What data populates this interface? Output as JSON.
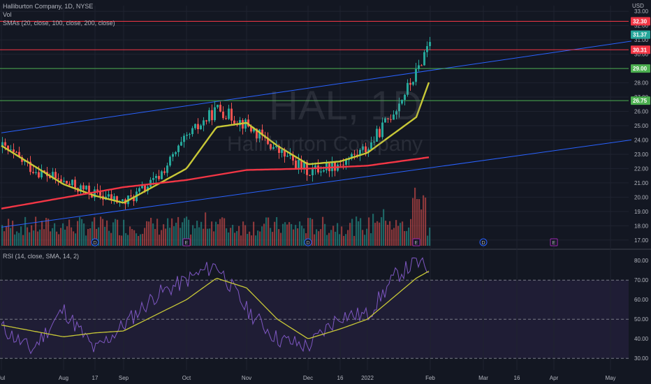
{
  "header": {
    "symbol_line": "Halliburton Company, 1D, NYSE",
    "vol_label": "Vol",
    "sma_label": "SMAs (20, close, 100, close, 200, close)",
    "rsi_label": "RSI (14, close, SMA, 14, 2)",
    "currency": "USD"
  },
  "watermark": {
    "ticker": "HAL, 1D",
    "name": "Halliburton Company"
  },
  "colors": {
    "background": "#131722",
    "grid": "#1f2330",
    "up": "#26a69a",
    "down": "#ef5350",
    "sma_fast": "#c8c837",
    "sma_slow": "#f23645",
    "channel": "#2962ff",
    "resistance": "#f23645",
    "support": "#4caf50",
    "rsi_line": "#7e57c2",
    "rsi_ma": "#c8c837",
    "rsi_band": "#2a2346"
  },
  "chart_data": [
    {
      "type": "candlestick",
      "title": "Halliburton Company, 1D, NYSE",
      "ylim": [
        16.6,
        33.4
      ],
      "y_ticks": [
        "17.00",
        "18.00",
        "19.00",
        "20.00",
        "21.00",
        "22.00",
        "23.00",
        "24.00",
        "25.00",
        "26.00",
        "27.00",
        "28.00",
        "29.00",
        "30.00",
        "31.00",
        "32.00",
        "33.00"
      ],
      "x_ticks": [
        "Jul",
        "Aug",
        "17",
        "Sep",
        "Oct",
        "Nov",
        "Dec",
        "16",
        "2022",
        "Feb",
        "Mar",
        "16",
        "Apr",
        "May"
      ],
      "horizontal_levels": [
        {
          "label": "32.30",
          "value": 32.3,
          "kind": "resistance"
        },
        {
          "label": "30.31",
          "value": 30.31,
          "kind": "resistance"
        },
        {
          "label": "29.00",
          "value": 29.0,
          "kind": "support"
        },
        {
          "label": "26.75",
          "value": 26.75,
          "kind": "support"
        }
      ],
      "last_price": {
        "label": "31.37",
        "value": 31.37
      },
      "channel_lines": [
        {
          "name": "upper",
          "from": [
            "Jul",
            24.5
          ],
          "to": [
            "May",
            30.7
          ]
        },
        {
          "name": "lower",
          "from": [
            "Jul",
            17.9
          ],
          "to": [
            "May",
            23.8
          ]
        }
      ],
      "close_series_approx": [
        {
          "date": "Jul",
          "close": 23.5
        },
        {
          "date": "Jul (mid)",
          "close": 22.0
        },
        {
          "date": "Aug",
          "close": 21.0
        },
        {
          "date": "Aug 17",
          "close": 20.2
        },
        {
          "date": "Sep",
          "close": 19.6
        },
        {
          "date": "Sep (mid)",
          "close": 21.2
        },
        {
          "date": "Oct",
          "close": 24.2
        },
        {
          "date": "Oct (mid)",
          "close": 26.2
        },
        {
          "date": "Nov",
          "close": 25.0
        },
        {
          "date": "Nov (mid)",
          "close": 23.2
        },
        {
          "date": "Dec",
          "close": 21.8
        },
        {
          "date": "Dec 16",
          "close": 22.4
        },
        {
          "date": "2022",
          "close": 23.5
        },
        {
          "date": "Jan (mid)",
          "close": 26.3
        },
        {
          "date": "Jan (late)",
          "close": 28.8
        },
        {
          "date": "Feb",
          "close": 31.37
        }
      ],
      "series": [
        {
          "name": "SMA 20",
          "values": [
            {
              "date": "Jul",
              "value": 23.6
            },
            {
              "date": "Aug",
              "value": 20.9
            },
            {
              "date": "Aug 17",
              "value": 20.1
            },
            {
              "date": "Sep",
              "value": 19.6
            },
            {
              "date": "Oct",
              "value": 22.0
            },
            {
              "date": "Oct (mid)",
              "value": 24.9
            },
            {
              "date": "Nov",
              "value": 25.2
            },
            {
              "date": "Nov (mid)",
              "value": 23.6
            },
            {
              "date": "Dec",
              "value": 22.3
            },
            {
              "date": "Dec 16",
              "value": 22.5
            },
            {
              "date": "2022",
              "value": 23.1
            },
            {
              "date": "Jan (late)",
              "value": 25.6
            },
            {
              "date": "Feb",
              "value": 28.3
            }
          ]
        },
        {
          "name": "SMA 200",
          "values": [
            {
              "date": "Jul",
              "value": 19.2
            },
            {
              "date": "Sep",
              "value": 20.7
            },
            {
              "date": "Oct",
              "value": 21.2
            },
            {
              "date": "Nov",
              "value": 21.9
            },
            {
              "date": "Dec",
              "value": 22.0
            },
            {
              "date": "2022",
              "value": 22.2
            },
            {
              "date": "Feb",
              "value": 22.8
            }
          ]
        }
      ],
      "event_markers": [
        {
          "date": "Aug 17",
          "glyph": "D"
        },
        {
          "date": "Oct",
          "glyph": "E"
        },
        {
          "date": "Dec",
          "glyph": "D"
        },
        {
          "date": "Jan (late)",
          "glyph": "E"
        },
        {
          "date": "Mar",
          "glyph": "D"
        },
        {
          "date": "Apr",
          "glyph": "E"
        }
      ]
    },
    {
      "type": "line",
      "title": "RSI (14, close, SMA, 14, 2)",
      "ylim": [
        24,
        84
      ],
      "y_ticks": [
        "30.00",
        "40.00",
        "50.00",
        "60.00",
        "70.00",
        "80.00"
      ],
      "bands": {
        "upper": 70,
        "middle": 50,
        "lower": 30
      },
      "series": [
        {
          "name": "RSI",
          "values": [
            {
              "date": "Jul",
              "value": 46
            },
            {
              "date": "Jul (mid)",
              "value": 34
            },
            {
              "date": "Aug",
              "value": 55
            },
            {
              "date": "Aug 17",
              "value": 34
            },
            {
              "date": "Sep",
              "value": 47
            },
            {
              "date": "Sep (mid)",
              "value": 62
            },
            {
              "date": "Oct",
              "value": 70
            },
            {
              "date": "Oct (mid)",
              "value": 78
            },
            {
              "date": "Nov",
              "value": 55
            },
            {
              "date": "Nov (mid)",
              "value": 40
            },
            {
              "date": "Dec",
              "value": 36
            },
            {
              "date": "Dec 16",
              "value": 52
            },
            {
              "date": "2022",
              "value": 52
            },
            {
              "date": "Jan (mid)",
              "value": 72
            },
            {
              "date": "Jan (late)",
              "value": 79
            },
            {
              "date": "Feb",
              "value": 75
            }
          ]
        },
        {
          "name": "RSI SMA",
          "values": [
            {
              "date": "Jul",
              "value": 47
            },
            {
              "date": "Aug",
              "value": 41
            },
            {
              "date": "Aug 17",
              "value": 43
            },
            {
              "date": "Sep",
              "value": 44
            },
            {
              "date": "Oct",
              "value": 60
            },
            {
              "date": "Oct (mid)",
              "value": 71
            },
            {
              "date": "Nov",
              "value": 66
            },
            {
              "date": "Nov (mid)",
              "value": 50
            },
            {
              "date": "Dec",
              "value": 40
            },
            {
              "date": "Dec 16",
              "value": 45
            },
            {
              "date": "2022",
              "value": 50
            },
            {
              "date": "Jan (mid)",
              "value": 62
            },
            {
              "date": "Jan (late)",
              "value": 71
            },
            {
              "date": "Feb",
              "value": 75
            }
          ]
        }
      ]
    }
  ]
}
